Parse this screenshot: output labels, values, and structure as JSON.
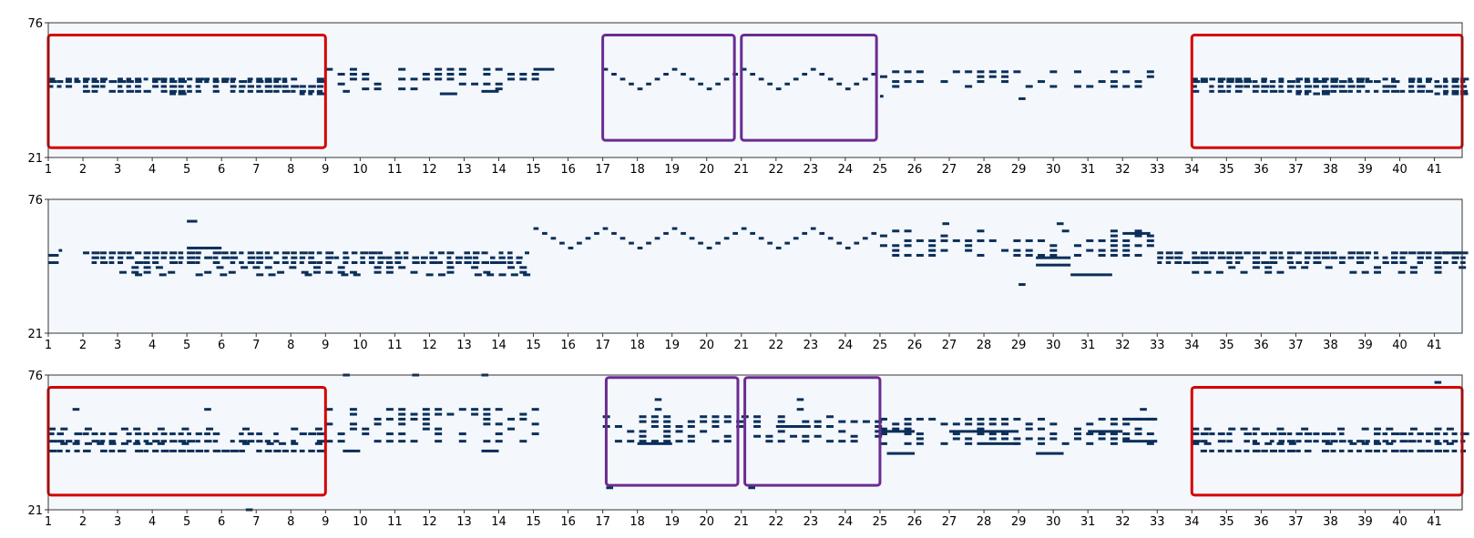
{
  "figure": {
    "colors": {
      "background": "#f4f8fc",
      "note": "#0b2f5a",
      "axis": "#333333",
      "highlight_repeat": "#d40000",
      "highlight_motif": "#6a2c91"
    }
  },
  "chart_data": [
    {
      "type": "heatmap",
      "x_tick_labels": [
        "1",
        "2",
        "3",
        "4",
        "5",
        "6",
        "7",
        "8",
        "9",
        "10",
        "11",
        "12",
        "13",
        "14",
        "15",
        "16",
        "17",
        "18",
        "19",
        "20",
        "21",
        "22",
        "23",
        "24",
        "25",
        "26",
        "27",
        "28",
        "29",
        "30",
        "31",
        "32",
        "33",
        "34",
        "35",
        "36",
        "37",
        "38",
        "39",
        "40",
        "41"
      ],
      "xlim": [
        1,
        41.8
      ],
      "y_tick_labels": [
        "21",
        "76"
      ],
      "ylim": [
        21,
        76
      ],
      "notes": [
        {
          "start": 1.0,
          "end": 9.0,
          "pitches": [
            53,
            52,
            50
          ],
          "pattern": "dashed"
        },
        {
          "start": 2.0,
          "end": 9.0,
          "pitches": [
            48
          ],
          "pattern": "dashed"
        },
        {
          "start": 4.0,
          "end": 5.0,
          "pitches": [
            47
          ],
          "pattern": "dashed"
        },
        {
          "start": 8.0,
          "end": 9.0,
          "pitches": [
            47
          ],
          "pattern": "dashed"
        },
        {
          "start": 9.0,
          "end": 15.0,
          "pitches": [
            57,
            55,
            53,
            51,
            49
          ],
          "pattern": "sparse"
        },
        {
          "start": 9.5,
          "end": 9.7,
          "pitches": [
            48
          ]
        },
        {
          "start": 12.3,
          "end": 12.8,
          "pitches": [
            47
          ]
        },
        {
          "start": 13.5,
          "end": 14.0,
          "pitches": [
            48
          ]
        },
        {
          "start": 15.0,
          "end": 15.6,
          "pitches": [
            57
          ]
        },
        {
          "start": 17.0,
          "end": 20.8,
          "pitches": [
            57,
            55,
            53,
            51,
            49
          ],
          "pattern": "wave"
        },
        {
          "start": 21.0,
          "end": 24.8,
          "pitches": [
            57,
            55,
            53,
            51,
            49
          ],
          "pattern": "wave"
        },
        {
          "start": 25.0,
          "end": 33.0,
          "pitches": [
            56,
            54,
            52,
            50
          ],
          "pattern": "sparse"
        },
        {
          "start": 25.0,
          "end": 25.1,
          "pitches": [
            46
          ]
        },
        {
          "start": 29.0,
          "end": 29.2,
          "pitches": [
            45
          ]
        },
        {
          "start": 34.0,
          "end": 41.8,
          "pitches": [
            53,
            52,
            50
          ],
          "pattern": "dashed"
        },
        {
          "start": 34.0,
          "end": 41.8,
          "pitches": [
            48
          ],
          "pattern": "dashed"
        },
        {
          "start": 37.0,
          "end": 38.0,
          "pitches": [
            47
          ],
          "pattern": "dashed"
        },
        {
          "start": 41.0,
          "end": 41.8,
          "pitches": [
            47
          ],
          "pattern": "dashed"
        }
      ],
      "highlights": [
        {
          "kind": "repeat",
          "x": [
            1.0,
            9.0
          ],
          "y": [
            25,
            71
          ]
        },
        {
          "kind": "motif",
          "x": [
            17.0,
            20.8
          ],
          "y": [
            28,
            71
          ]
        },
        {
          "kind": "motif",
          "x": [
            21.0,
            24.9
          ],
          "y": [
            28,
            71
          ]
        },
        {
          "kind": "repeat",
          "x": [
            34.0,
            41.8
          ],
          "y": [
            25,
            71
          ]
        }
      ]
    },
    {
      "type": "heatmap",
      "x_tick_labels": [
        "1",
        "2",
        "3",
        "4",
        "5",
        "6",
        "7",
        "8",
        "9",
        "10",
        "11",
        "12",
        "13",
        "14",
        "15",
        "16",
        "17",
        "18",
        "19",
        "20",
        "21",
        "22",
        "23",
        "24",
        "25",
        "26",
        "27",
        "28",
        "29",
        "30",
        "31",
        "32",
        "33",
        "34",
        "35",
        "36",
        "37",
        "38",
        "39",
        "40",
        "41"
      ],
      "xlim": [
        1,
        41.8
      ],
      "y_tick_labels": [
        "21",
        "76"
      ],
      "ylim": [
        21,
        76
      ],
      "notes": [
        {
          "start": 1.0,
          "end": 1.3,
          "pitches": [
            53,
            50
          ]
        },
        {
          "start": 1.3,
          "end": 1.4,
          "pitches": [
            55
          ]
        },
        {
          "start": 2.0,
          "end": 15.0,
          "pitches": [
            54,
            52,
            50
          ],
          "pattern": "dashed"
        },
        {
          "start": 2.0,
          "end": 15.0,
          "pitches": [
            48,
            46
          ],
          "pattern": "sparse"
        },
        {
          "start": 3.5,
          "end": 15.0,
          "pitches": [
            45
          ],
          "pattern": "sparse"
        },
        {
          "start": 5.0,
          "end": 5.3,
          "pitches": [
            67
          ]
        },
        {
          "start": 5.0,
          "end": 6.0,
          "pitches": [
            56
          ]
        },
        {
          "start": 15.0,
          "end": 25.0,
          "pitches": [
            64,
            62,
            60,
            58,
            56
          ],
          "pattern": "wave"
        },
        {
          "start": 25.0,
          "end": 33.0,
          "pitches": [
            63,
            61,
            59,
            57,
            55,
            53
          ],
          "pattern": "sparse"
        },
        {
          "start": 26.8,
          "end": 27.0,
          "pitches": [
            66
          ]
        },
        {
          "start": 29.5,
          "end": 30.5,
          "pitches": [
            52,
            49
          ]
        },
        {
          "start": 29.0,
          "end": 29.2,
          "pitches": [
            41
          ]
        },
        {
          "start": 30.5,
          "end": 31.7,
          "pitches": [
            45
          ]
        },
        {
          "start": 30.1,
          "end": 30.3,
          "pitches": [
            66
          ]
        },
        {
          "start": 32.0,
          "end": 32.8,
          "pitches": [
            62
          ]
        },
        {
          "start": 33.0,
          "end": 41.8,
          "pitches": [
            54,
            52,
            50
          ],
          "pattern": "dashed"
        },
        {
          "start": 34.0,
          "end": 41.8,
          "pitches": [
            48,
            46
          ],
          "pattern": "sparse"
        },
        {
          "start": 41.2,
          "end": 41.8,
          "pitches": [
            54
          ]
        }
      ],
      "highlights": []
    },
    {
      "type": "heatmap",
      "x_tick_labels": [
        "1",
        "2",
        "3",
        "4",
        "5",
        "6",
        "7",
        "8",
        "9",
        "10",
        "11",
        "12",
        "13",
        "14",
        "15",
        "16",
        "17",
        "18",
        "19",
        "20",
        "21",
        "22",
        "23",
        "24",
        "25",
        "26",
        "27",
        "28",
        "29",
        "30",
        "31",
        "32",
        "33",
        "34",
        "35",
        "36",
        "37",
        "38",
        "39",
        "40",
        "41"
      ],
      "xlim": [
        1,
        41.8
      ],
      "y_tick_labels": [
        "21",
        "76"
      ],
      "ylim": [
        21,
        76
      ],
      "notes": [
        {
          "start": 1.0,
          "end": 9.0,
          "pitches": [
            52,
            49,
            45
          ],
          "pattern": "dashed"
        },
        {
          "start": 1.0,
          "end": 9.0,
          "pitches": [
            54,
            48
          ],
          "pattern": "sparse"
        },
        {
          "start": 1.7,
          "end": 1.9,
          "pitches": [
            62
          ]
        },
        {
          "start": 5.5,
          "end": 5.7,
          "pitches": [
            62
          ]
        },
        {
          "start": 6.7,
          "end": 6.9,
          "pitches": [
            21
          ]
        },
        {
          "start": 9.0,
          "end": 15.0,
          "pitches": [
            62,
            60,
            58,
            56,
            54,
            52,
            49
          ],
          "pattern": "sparse"
        },
        {
          "start": 9.5,
          "end": 10.0,
          "pitches": [
            45
          ]
        },
        {
          "start": 13.5,
          "end": 14.0,
          "pitches": [
            45
          ]
        },
        {
          "start": 9.5,
          "end": 9.7,
          "pitches": [
            76
          ]
        },
        {
          "start": 11.5,
          "end": 11.7,
          "pitches": [
            76
          ]
        },
        {
          "start": 13.5,
          "end": 13.7,
          "pitches": [
            76
          ]
        },
        {
          "start": 17.0,
          "end": 20.9,
          "pitches": [
            59,
            57,
            55,
            53,
            51,
            49
          ],
          "pattern": "sparse"
        },
        {
          "start": 18.0,
          "end": 19.0,
          "pitches": [
            48
          ]
        },
        {
          "start": 18.5,
          "end": 18.7,
          "pitches": [
            66,
            62
          ]
        },
        {
          "start": 17.1,
          "end": 17.3,
          "pitches": [
            30
          ]
        },
        {
          "start": 21.0,
          "end": 24.9,
          "pitches": [
            59,
            57,
            55,
            53,
            51,
            49
          ],
          "pattern": "sparse"
        },
        {
          "start": 22.0,
          "end": 23.0,
          "pitches": [
            55
          ]
        },
        {
          "start": 22.6,
          "end": 22.8,
          "pitches": [
            66,
            62
          ]
        },
        {
          "start": 21.2,
          "end": 21.4,
          "pitches": [
            30
          ]
        },
        {
          "start": 25.0,
          "end": 33.0,
          "pitches": [
            58,
            56,
            54,
            52,
            50,
            48
          ],
          "pattern": "sparse"
        },
        {
          "start": 25.0,
          "end": 26.0,
          "pitches": [
            53
          ]
        },
        {
          "start": 27.0,
          "end": 29.0,
          "pitches": [
            53
          ]
        },
        {
          "start": 28.0,
          "end": 29.0,
          "pitches": [
            48
          ]
        },
        {
          "start": 31.0,
          "end": 32.0,
          "pitches": [
            53
          ]
        },
        {
          "start": 32.0,
          "end": 33.0,
          "pitches": [
            58,
            49
          ]
        },
        {
          "start": 25.2,
          "end": 26.0,
          "pitches": [
            44
          ]
        },
        {
          "start": 29.5,
          "end": 30.3,
          "pitches": [
            44
          ]
        },
        {
          "start": 32.5,
          "end": 32.7,
          "pitches": [
            62
          ]
        },
        {
          "start": 34.0,
          "end": 41.8,
          "pitches": [
            52,
            49,
            45
          ],
          "pattern": "dashed"
        },
        {
          "start": 34.0,
          "end": 41.8,
          "pitches": [
            54,
            48
          ],
          "pattern": "sparse"
        },
        {
          "start": 41.0,
          "end": 41.2,
          "pitches": [
            73
          ]
        }
      ],
      "highlights": [
        {
          "kind": "repeat",
          "x": [
            1.0,
            9.0
          ],
          "y": [
            27,
            71
          ]
        },
        {
          "kind": "motif",
          "x": [
            17.1,
            20.9
          ],
          "y": [
            31,
            75
          ]
        },
        {
          "kind": "motif",
          "x": [
            21.1,
            25.0
          ],
          "y": [
            31,
            75
          ]
        },
        {
          "kind": "repeat",
          "x": [
            34.0,
            41.8
          ],
          "y": [
            27,
            71
          ]
        }
      ]
    }
  ]
}
